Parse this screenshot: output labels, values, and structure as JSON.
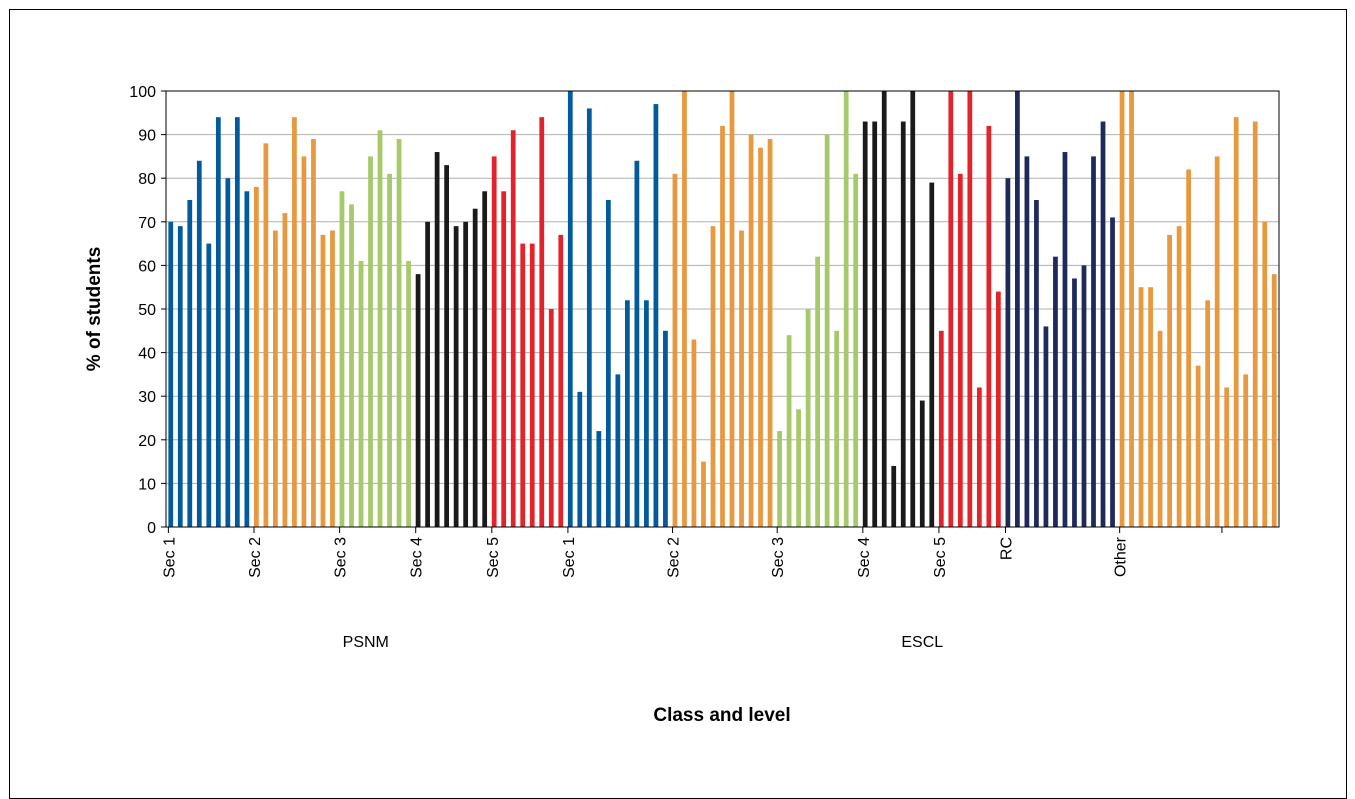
{
  "chart_data": {
    "type": "bar",
    "xlabel": "Class and level",
    "ylabel": "% of students",
    "ylim": [
      0,
      100
    ],
    "yticks": [
      0,
      10,
      20,
      30,
      40,
      50,
      60,
      70,
      80,
      90,
      100
    ],
    "grid": true,
    "colors": {
      "blue": "#005a9c",
      "orange": "#e8993f",
      "green": "#a6c96a",
      "black": "#1a1a1a",
      "red": "#e3232a",
      "navy": "#1f2a5c"
    },
    "groups": [
      {
        "name": "PSNM",
        "levels": [
          {
            "label": "Sec 1",
            "color": "blue",
            "values": [
              70,
              69,
              75,
              84,
              65,
              94,
              80,
              94,
              77
            ]
          },
          {
            "label": "Sec 2",
            "color": "orange",
            "values": [
              78,
              88,
              68,
              72,
              94,
              85,
              89,
              67,
              68
            ]
          },
          {
            "label": "Sec 3",
            "color": "green",
            "values": [
              77,
              74,
              61,
              85,
              91,
              81,
              89,
              61
            ]
          },
          {
            "label": "Sec 4",
            "color": "black",
            "values": [
              58,
              70,
              86,
              83,
              69,
              70,
              73,
              77
            ]
          },
          {
            "label": "Sec 5",
            "color": "red",
            "values": [
              85,
              77,
              91,
              65,
              65,
              94,
              50,
              67
            ]
          }
        ]
      },
      {
        "name": "ESCL",
        "levels": [
          {
            "label": "Sec 1",
            "color": "blue",
            "values": [
              100,
              31,
              96,
              22,
              75,
              35,
              52,
              84,
              52,
              97,
              45
            ]
          },
          {
            "label": "Sec 2",
            "color": "orange",
            "values": [
              81,
              100,
              43,
              15,
              69,
              92,
              100,
              68,
              90,
              87,
              89
            ]
          },
          {
            "label": "Sec 3",
            "color": "green",
            "values": [
              22,
              44,
              27,
              50,
              62,
              90,
              45,
              100,
              81
            ]
          },
          {
            "label": "Sec 4",
            "color": "black",
            "values": [
              93,
              93,
              100,
              14,
              93,
              100,
              29,
              79
            ]
          },
          {
            "label": "Sec 5",
            "color": "red",
            "values": [
              45,
              100,
              81,
              100,
              32,
              92,
              54
            ]
          },
          {
            "label": "RC",
            "color": "navy",
            "values": [
              80,
              100,
              85,
              75,
              46,
              62,
              86,
              57,
              60,
              85,
              93,
              71
            ]
          },
          {
            "label": "Other",
            "color": "orange",
            "values": [
              100,
              100,
              55,
              55,
              45,
              67,
              69,
              82,
              37,
              52,
              85,
              32,
              94,
              35,
              93,
              70,
              58
            ]
          }
        ]
      }
    ]
  }
}
